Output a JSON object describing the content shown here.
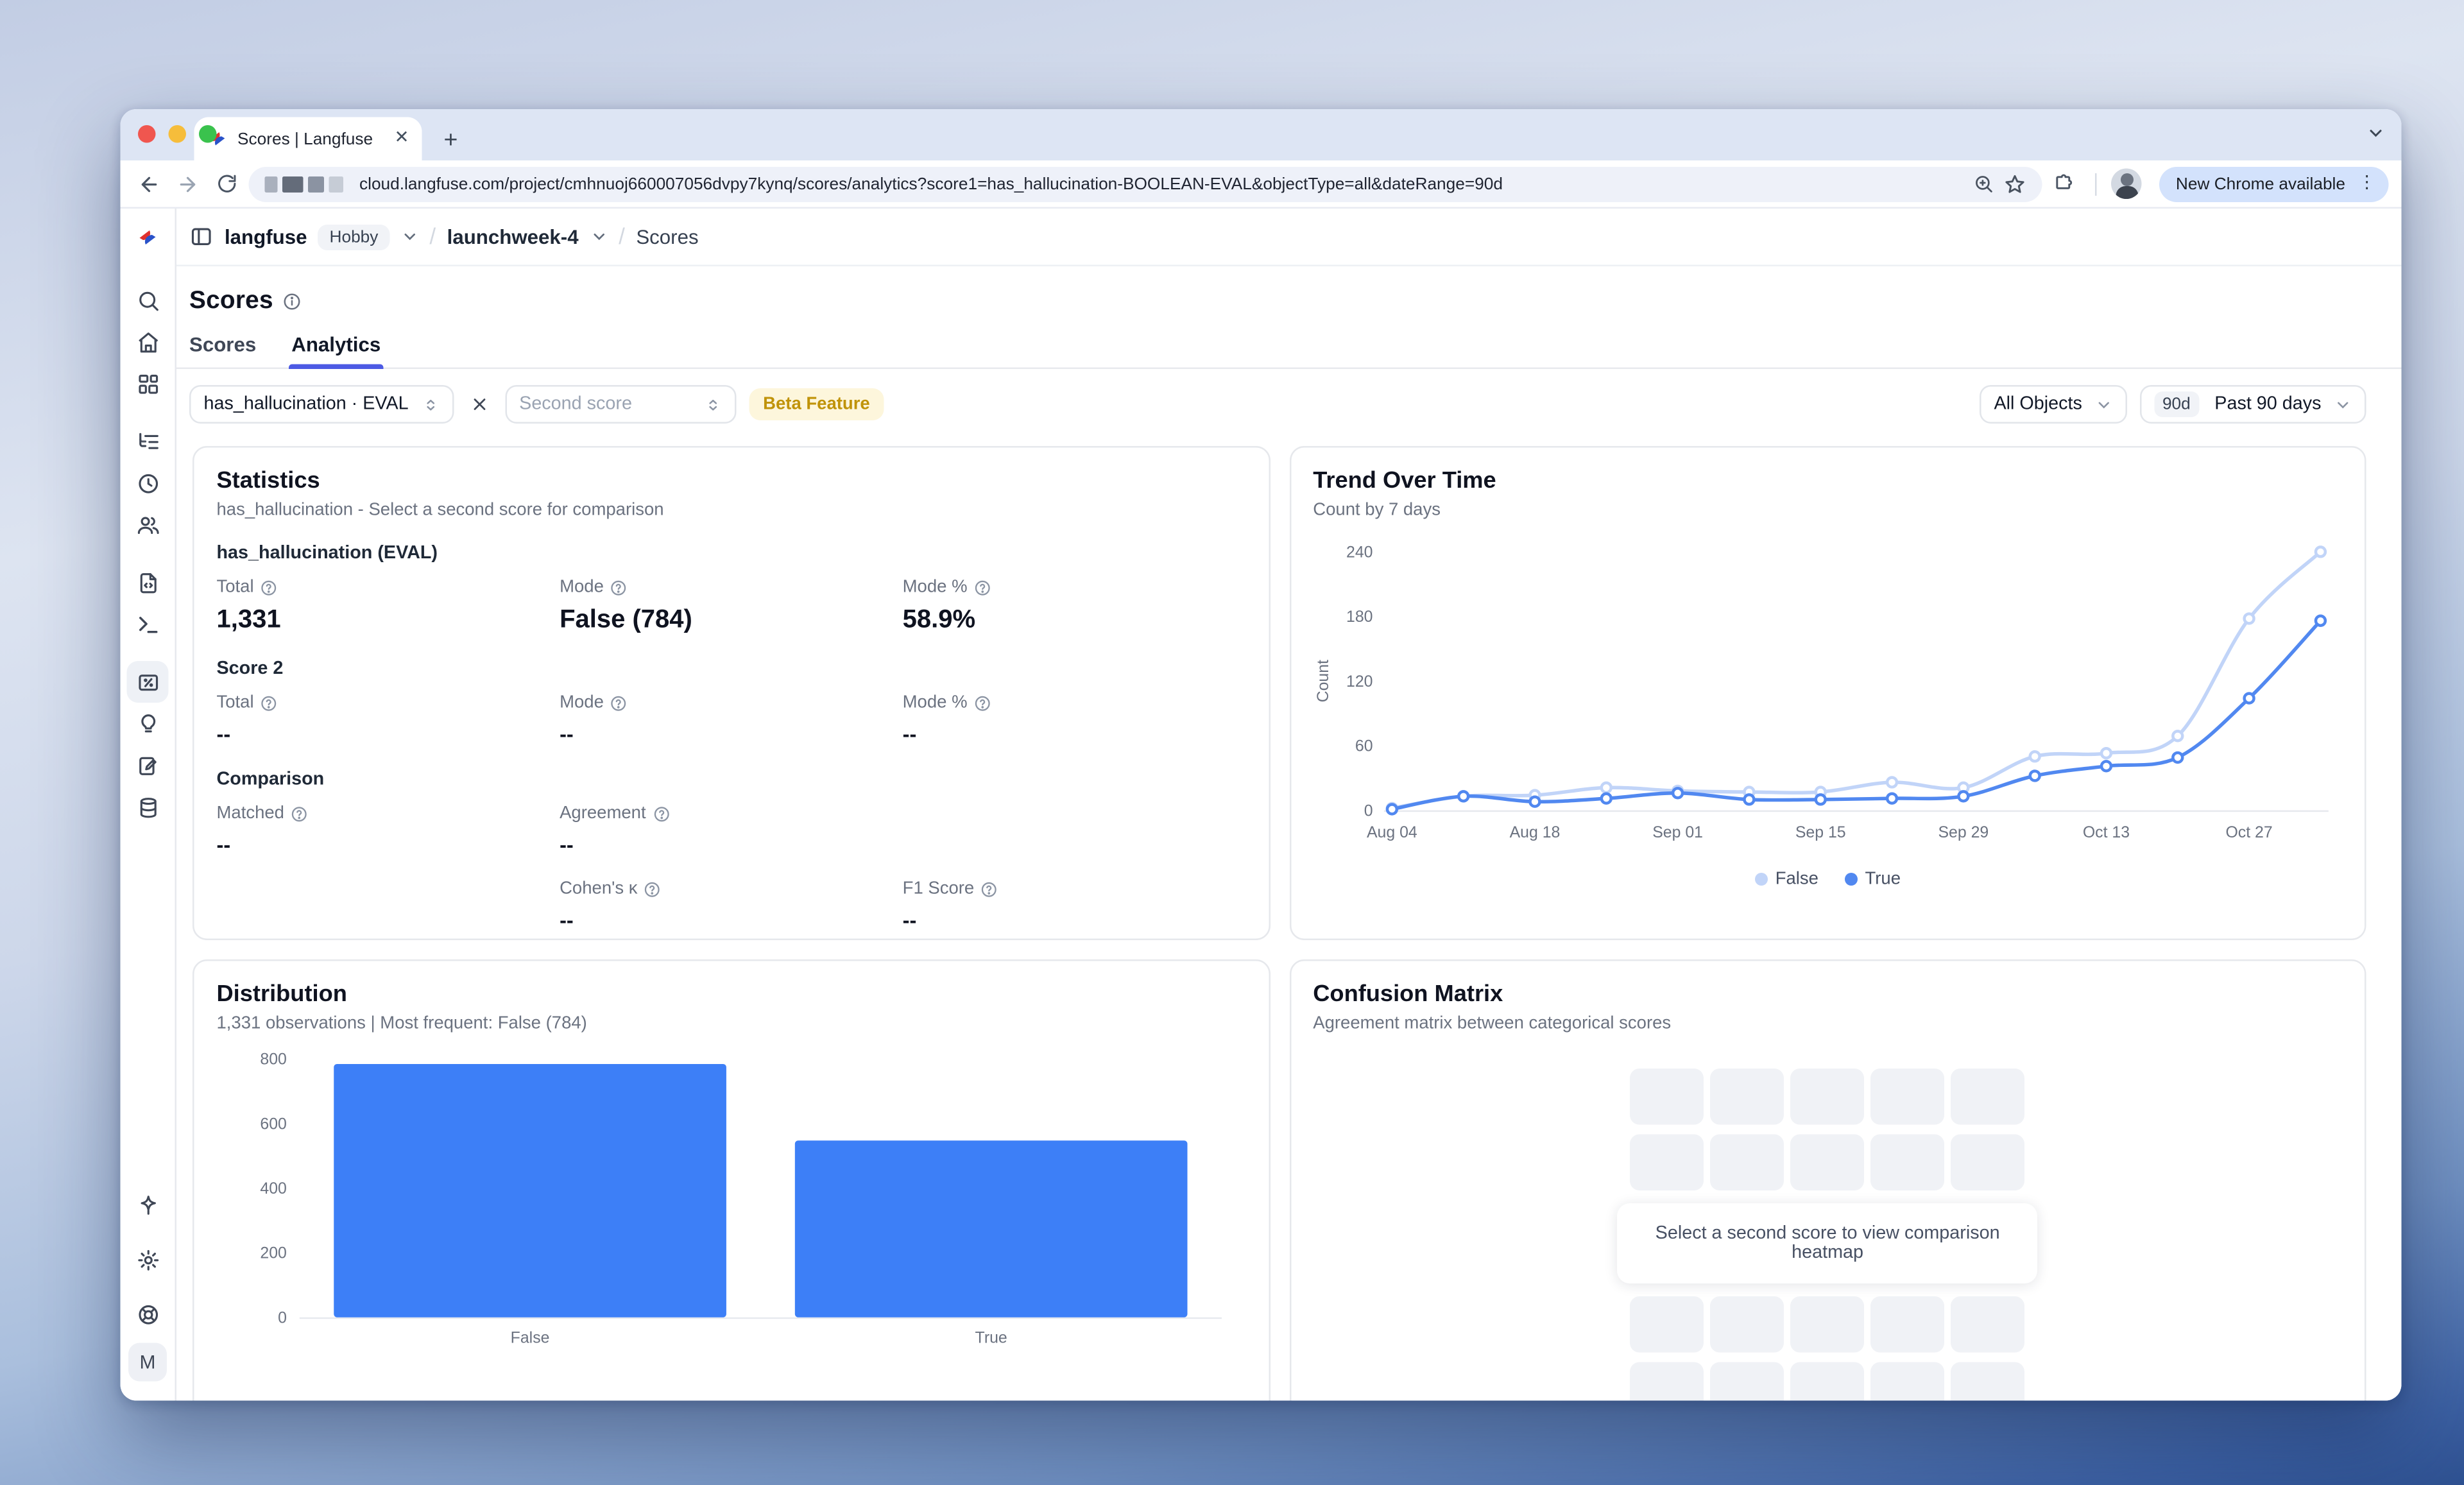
{
  "browser": {
    "tab_title": "Scores | Langfuse",
    "url": "cloud.langfuse.com/project/cmhnuoj660007056dvpy7kynq/scores/analytics?score1=has_hallucination-BOOLEAN-EVAL&objectType=all&dateRange=90d",
    "update_pill": "New Chrome available"
  },
  "breadcrumb": {
    "org": "langfuse",
    "plan": "Hobby",
    "project": "launchweek-4",
    "page": "Scores"
  },
  "page": {
    "title": "Scores",
    "tabs": [
      {
        "label": "Scores"
      },
      {
        "label": "Analytics"
      }
    ]
  },
  "filters": {
    "score1": "has_hallucination · EVAL",
    "score2_placeholder": "Second score",
    "beta_badge": "Beta Feature",
    "object_filter": "All Objects",
    "date_range_short": "90d",
    "date_range": "Past 90 days"
  },
  "statistics": {
    "title": "Statistics",
    "subtitle": "has_hallucination - Select a second score for comparison",
    "sections": [
      {
        "heading": "has_hallucination (EVAL)",
        "cells": [
          {
            "label": "Total",
            "value": "1,331"
          },
          {
            "label": "Mode",
            "value": "False (784)"
          },
          {
            "label": "Mode %",
            "value": "58.9%"
          }
        ]
      },
      {
        "heading": "Score 2",
        "cells": [
          {
            "label": "Total",
            "value": "--"
          },
          {
            "label": "Mode",
            "value": "--"
          },
          {
            "label": "Mode %",
            "value": "--"
          }
        ]
      },
      {
        "heading": "Comparison",
        "cells": [
          {
            "label": "Matched",
            "value": "--"
          },
          {
            "label": "Agreement",
            "value": "--"
          },
          {
            "label": "Cohen's κ",
            "value": "--"
          },
          {
            "label": "F1 Score",
            "value": "--"
          }
        ]
      }
    ]
  },
  "confusion": {
    "title": "Confusion Matrix",
    "subtitle": "Agreement matrix between categorical scores",
    "message": "Select a second score to view comparison heatmap",
    "grid_rows": 4,
    "grid_cols": 5
  },
  "sidebar": {
    "avatar": "M",
    "icons": [
      "search",
      "home",
      "dashboards",
      "tracing",
      "sessions",
      "users",
      "prompts",
      "playground",
      "scores",
      "llm-as-judge",
      "annotation",
      "datasets"
    ],
    "bottom_icons": [
      "whats-new",
      "settings",
      "support"
    ]
  },
  "chart_data": [
    {
      "type": "line",
      "title": "Trend Over Time",
      "subtitle": "Count by 7 days",
      "ylabel": "Count",
      "yticks": [
        0,
        60,
        120,
        180,
        240
      ],
      "ylim": [
        0,
        240
      ],
      "x": [
        "Aug 04",
        "Aug 11",
        "Aug 18",
        "Aug 25",
        "Sep 01",
        "Sep 08",
        "Sep 15",
        "Sep 22",
        "Sep 29",
        "Oct 06",
        "Oct 13",
        "Oct 20",
        "Oct 27",
        "Nov 03"
      ],
      "xtick_every": 2,
      "series": [
        {
          "name": "False",
          "color": "#c1d4f8",
          "values": [
            2,
            13,
            14,
            21,
            18,
            17,
            17,
            26,
            21,
            50,
            53,
            69,
            178,
            240
          ]
        },
        {
          "name": "True",
          "color": "#5188f0",
          "values": [
            1,
            13,
            8,
            11,
            16,
            10,
            10,
            11,
            13,
            32,
            41,
            49,
            104,
            176
          ]
        }
      ],
      "legend_position": "bottom",
      "grid": false
    },
    {
      "type": "bar",
      "title": "Distribution",
      "subtitle": "1,331 observations | Most frequent: False (784)",
      "categories": [
        "False",
        "True"
      ],
      "values": [
        784,
        547
      ],
      "series_name": "has_hallucination",
      "color": "#3d7ff7",
      "yticks": [
        0,
        200,
        400,
        600,
        800
      ],
      "ylim": [
        0,
        800
      ],
      "legend_position": "bottom",
      "grid": false
    }
  ]
}
